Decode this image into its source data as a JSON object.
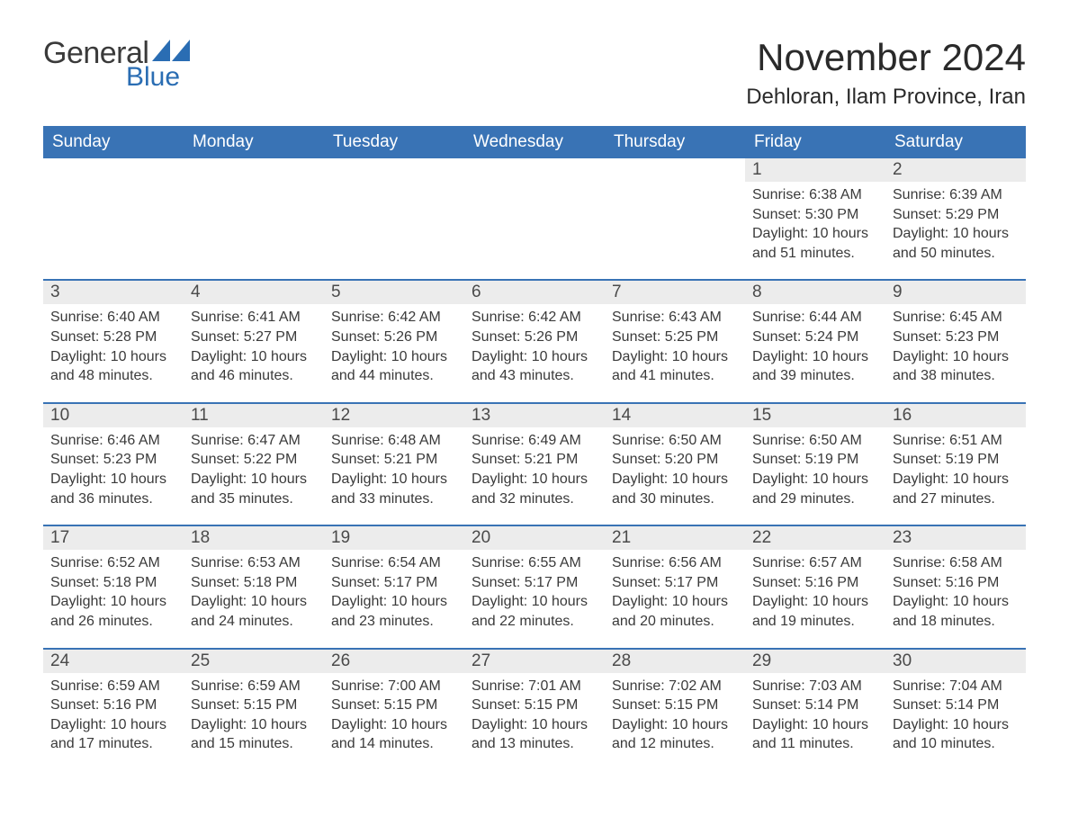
{
  "logo": {
    "text_general": "General",
    "text_blue": "Blue",
    "brand_color": "#2a6db3"
  },
  "title": "November 2024",
  "location": "Dehloran, Ilam Province, Iran",
  "colors": {
    "header_bg": "#3973b5",
    "header_text": "#ffffff",
    "cell_border": "#3973b5",
    "daynum_bg": "#ececec",
    "body_text": "#3a3a3a",
    "page_bg": "#ffffff"
  },
  "day_headers": [
    "Sunday",
    "Monday",
    "Tuesday",
    "Wednesday",
    "Thursday",
    "Friday",
    "Saturday"
  ],
  "labels": {
    "sunrise": "Sunrise:",
    "sunset": "Sunset:",
    "daylight": "Daylight:"
  },
  "weeks": [
    [
      null,
      null,
      null,
      null,
      null,
      {
        "n": "1",
        "sunrise": "6:38 AM",
        "sunset": "5:30 PM",
        "daylight": "10 hours and 51 minutes."
      },
      {
        "n": "2",
        "sunrise": "6:39 AM",
        "sunset": "5:29 PM",
        "daylight": "10 hours and 50 minutes."
      }
    ],
    [
      {
        "n": "3",
        "sunrise": "6:40 AM",
        "sunset": "5:28 PM",
        "daylight": "10 hours and 48 minutes."
      },
      {
        "n": "4",
        "sunrise": "6:41 AM",
        "sunset": "5:27 PM",
        "daylight": "10 hours and 46 minutes."
      },
      {
        "n": "5",
        "sunrise": "6:42 AM",
        "sunset": "5:26 PM",
        "daylight": "10 hours and 44 minutes."
      },
      {
        "n": "6",
        "sunrise": "6:42 AM",
        "sunset": "5:26 PM",
        "daylight": "10 hours and 43 minutes."
      },
      {
        "n": "7",
        "sunrise": "6:43 AM",
        "sunset": "5:25 PM",
        "daylight": "10 hours and 41 minutes."
      },
      {
        "n": "8",
        "sunrise": "6:44 AM",
        "sunset": "5:24 PM",
        "daylight": "10 hours and 39 minutes."
      },
      {
        "n": "9",
        "sunrise": "6:45 AM",
        "sunset": "5:23 PM",
        "daylight": "10 hours and 38 minutes."
      }
    ],
    [
      {
        "n": "10",
        "sunrise": "6:46 AM",
        "sunset": "5:23 PM",
        "daylight": "10 hours and 36 minutes."
      },
      {
        "n": "11",
        "sunrise": "6:47 AM",
        "sunset": "5:22 PM",
        "daylight": "10 hours and 35 minutes."
      },
      {
        "n": "12",
        "sunrise": "6:48 AM",
        "sunset": "5:21 PM",
        "daylight": "10 hours and 33 minutes."
      },
      {
        "n": "13",
        "sunrise": "6:49 AM",
        "sunset": "5:21 PM",
        "daylight": "10 hours and 32 minutes."
      },
      {
        "n": "14",
        "sunrise": "6:50 AM",
        "sunset": "5:20 PM",
        "daylight": "10 hours and 30 minutes."
      },
      {
        "n": "15",
        "sunrise": "6:50 AM",
        "sunset": "5:19 PM",
        "daylight": "10 hours and 29 minutes."
      },
      {
        "n": "16",
        "sunrise": "6:51 AM",
        "sunset": "5:19 PM",
        "daylight": "10 hours and 27 minutes."
      }
    ],
    [
      {
        "n": "17",
        "sunrise": "6:52 AM",
        "sunset": "5:18 PM",
        "daylight": "10 hours and 26 minutes."
      },
      {
        "n": "18",
        "sunrise": "6:53 AM",
        "sunset": "5:18 PM",
        "daylight": "10 hours and 24 minutes."
      },
      {
        "n": "19",
        "sunrise": "6:54 AM",
        "sunset": "5:17 PM",
        "daylight": "10 hours and 23 minutes."
      },
      {
        "n": "20",
        "sunrise": "6:55 AM",
        "sunset": "5:17 PM",
        "daylight": "10 hours and 22 minutes."
      },
      {
        "n": "21",
        "sunrise": "6:56 AM",
        "sunset": "5:17 PM",
        "daylight": "10 hours and 20 minutes."
      },
      {
        "n": "22",
        "sunrise": "6:57 AM",
        "sunset": "5:16 PM",
        "daylight": "10 hours and 19 minutes."
      },
      {
        "n": "23",
        "sunrise": "6:58 AM",
        "sunset": "5:16 PM",
        "daylight": "10 hours and 18 minutes."
      }
    ],
    [
      {
        "n": "24",
        "sunrise": "6:59 AM",
        "sunset": "5:16 PM",
        "daylight": "10 hours and 17 minutes."
      },
      {
        "n": "25",
        "sunrise": "6:59 AM",
        "sunset": "5:15 PM",
        "daylight": "10 hours and 15 minutes."
      },
      {
        "n": "26",
        "sunrise": "7:00 AM",
        "sunset": "5:15 PM",
        "daylight": "10 hours and 14 minutes."
      },
      {
        "n": "27",
        "sunrise": "7:01 AM",
        "sunset": "5:15 PM",
        "daylight": "10 hours and 13 minutes."
      },
      {
        "n": "28",
        "sunrise": "7:02 AM",
        "sunset": "5:15 PM",
        "daylight": "10 hours and 12 minutes."
      },
      {
        "n": "29",
        "sunrise": "7:03 AM",
        "sunset": "5:14 PM",
        "daylight": "10 hours and 11 minutes."
      },
      {
        "n": "30",
        "sunrise": "7:04 AM",
        "sunset": "5:14 PM",
        "daylight": "10 hours and 10 minutes."
      }
    ]
  ]
}
